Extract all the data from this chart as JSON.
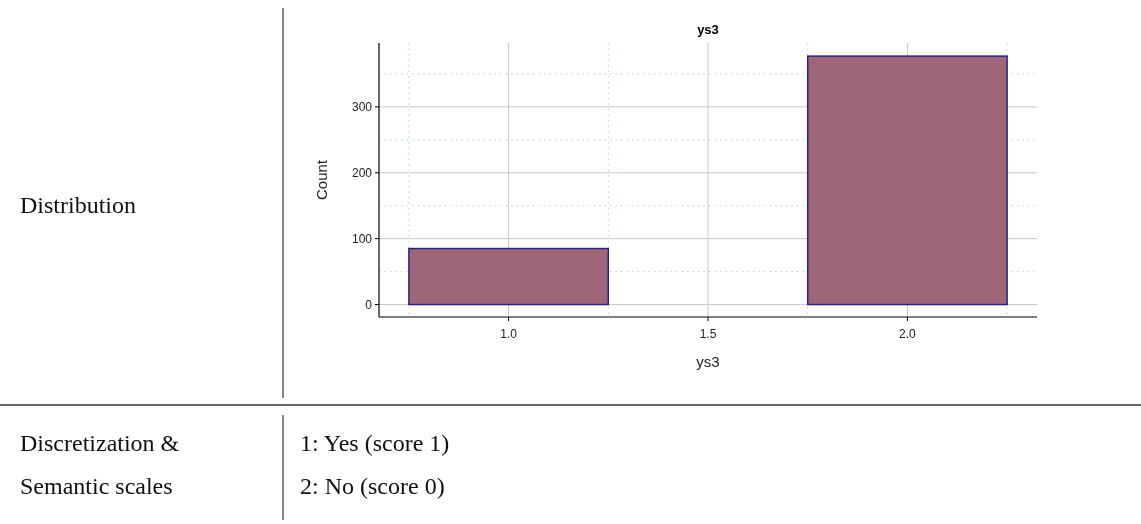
{
  "chart_data": {
    "type": "histogram",
    "title": "ys3",
    "xlabel": "ys3",
    "ylabel": "Count",
    "bins": [
      0.75,
      1.25,
      1.75,
      2.25
    ],
    "values": [
      85,
      0,
      377
    ],
    "color": "#9e6676",
    "xlim": [
      0.675,
      2.325
    ],
    "ylim": [
      -18.9,
      396.9
    ],
    "xticks": [
      {
        "value": 0.75,
        "label": null
      },
      {
        "value": 1,
        "label": "1.0"
      },
      {
        "value": 1.25,
        "label": null
      },
      1.5,
      {
        "value": 1.75,
        "label": null
      },
      {
        "value": 2,
        "label": "2.0"
      },
      {
        "value": 2.25,
        "label": null
      }
    ],
    "yticks": [
      0,
      {
        "value": 50,
        "label": null
      },
      100,
      {
        "value": 150,
        "label": null
      },
      200,
      {
        "value": 250,
        "label": null
      },
      300,
      {
        "value": 350,
        "label": null
      }
    ],
    "grid": true,
    "annotations": [
      "Distribution",
      "Discretization &",
      "Semantic scales",
      "1: Yes (score 1)",
      "2: No (score 0)"
    ]
  }
}
